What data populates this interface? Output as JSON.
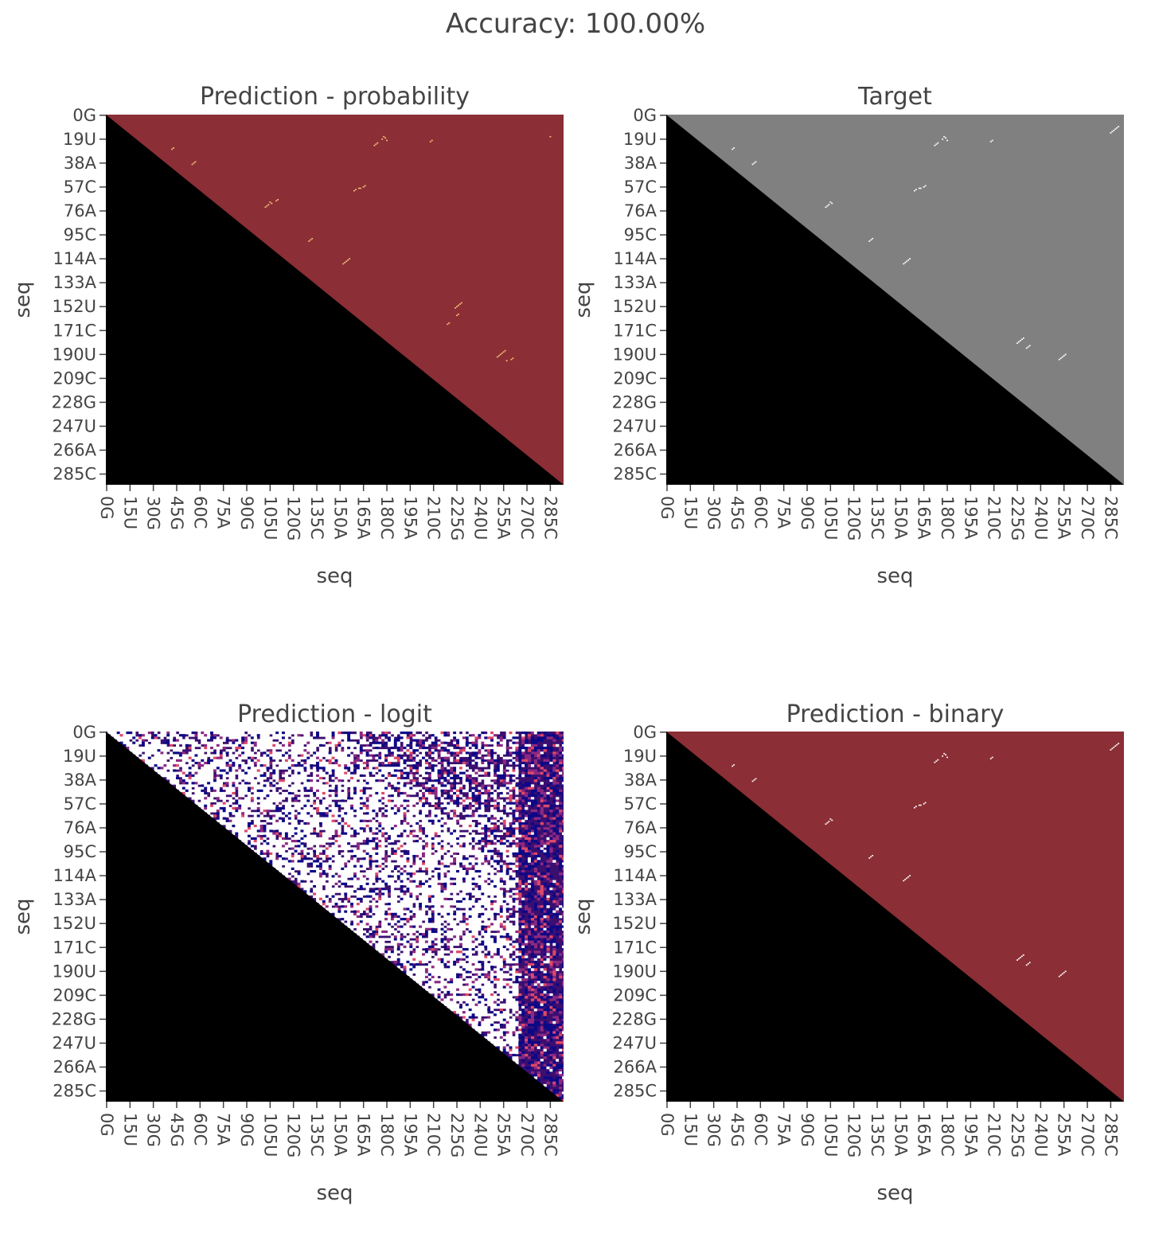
{
  "figure": {
    "title": "Accuracy: 100.00%"
  },
  "chart_data": [
    {
      "type": "heatmap",
      "title": "Prediction - probability",
      "xlabel": "seq",
      "ylabel": "seq",
      "x_ticks": [
        "0G",
        "15U",
        "30G",
        "45G",
        "60C",
        "75A",
        "90G",
        "105U",
        "120G",
        "135C",
        "150A",
        "165A",
        "180C",
        "195A",
        "210C",
        "225G",
        "240U",
        "255A",
        "270C",
        "285C"
      ],
      "y_ticks": [
        "0G",
        "19U",
        "38A",
        "57C",
        "76A",
        "95C",
        "114A",
        "133A",
        "152U",
        "171C",
        "190U",
        "209C",
        "228G",
        "247U",
        "266A",
        "285C"
      ],
      "seq_length": 294,
      "lower_triangle_color": "#000000",
      "background_color": "#8b2e35",
      "pair_color": "#f4c27a",
      "pairs": [
        [
          17,
          178
        ],
        [
          18,
          179
        ],
        [
          19,
          177
        ],
        [
          20,
          180
        ],
        [
          22,
          174
        ],
        [
          23,
          173
        ],
        [
          24,
          172
        ],
        [
          21,
          208
        ],
        [
          20,
          209
        ],
        [
          17,
          285
        ],
        [
          26,
          43
        ],
        [
          27,
          42
        ],
        [
          37,
          57
        ],
        [
          38,
          56
        ],
        [
          39,
          55
        ],
        [
          56,
          166
        ],
        [
          57,
          165
        ],
        [
          58,
          162
        ],
        [
          58,
          163
        ],
        [
          59,
          160
        ],
        [
          60,
          159
        ],
        [
          69,
          105
        ],
        [
          70,
          106
        ],
        [
          71,
          104
        ],
        [
          72,
          103
        ],
        [
          73,
          102
        ],
        [
          67,
          110
        ],
        [
          68,
          109
        ],
        [
          98,
          132
        ],
        [
          99,
          131
        ],
        [
          100,
          130
        ],
        [
          114,
          156
        ],
        [
          115,
          155
        ],
        [
          116,
          154
        ],
        [
          117,
          153
        ],
        [
          118,
          152
        ],
        [
          149,
          228
        ],
        [
          150,
          227
        ],
        [
          151,
          226
        ],
        [
          152,
          225
        ],
        [
          153,
          224
        ],
        [
          158,
          226
        ],
        [
          159,
          225
        ],
        [
          165,
          220
        ],
        [
          166,
          219
        ],
        [
          187,
          256
        ],
        [
          188,
          255
        ],
        [
          189,
          254
        ],
        [
          190,
          253
        ],
        [
          191,
          252
        ],
        [
          192,
          251
        ],
        [
          193,
          261
        ],
        [
          194,
          260
        ],
        [
          195,
          257
        ]
      ]
    },
    {
      "type": "heatmap",
      "title": "Target",
      "xlabel": "seq",
      "ylabel": "seq",
      "x_ticks": [
        "0G",
        "15U",
        "30G",
        "45G",
        "60C",
        "75A",
        "90G",
        "105U",
        "120G",
        "135C",
        "150A",
        "165A",
        "180C",
        "195A",
        "210C",
        "225G",
        "240U",
        "255A",
        "270C",
        "285C"
      ],
      "y_ticks": [
        "0G",
        "19U",
        "38A",
        "57C",
        "76A",
        "95C",
        "114A",
        "133A",
        "152U",
        "171C",
        "190U",
        "209C",
        "228G",
        "247U",
        "266A",
        "285C"
      ],
      "seq_length": 294,
      "lower_triangle_color": "#000000",
      "background_color": "#808080",
      "pair_color": "#ffffff",
      "pairs": [
        [
          17,
          178
        ],
        [
          18,
          179
        ],
        [
          19,
          177
        ],
        [
          20,
          180
        ],
        [
          22,
          174
        ],
        [
          23,
          173
        ],
        [
          24,
          172
        ],
        [
          21,
          208
        ],
        [
          20,
          209
        ],
        [
          9,
          290
        ],
        [
          10,
          289
        ],
        [
          11,
          288
        ],
        [
          12,
          287
        ],
        [
          13,
          286
        ],
        [
          14,
          285
        ],
        [
          26,
          43
        ],
        [
          27,
          42
        ],
        [
          37,
          57
        ],
        [
          38,
          56
        ],
        [
          39,
          55
        ],
        [
          56,
          166
        ],
        [
          57,
          165
        ],
        [
          58,
          162
        ],
        [
          58,
          163
        ],
        [
          59,
          160
        ],
        [
          60,
          159
        ],
        [
          69,
          105
        ],
        [
          70,
          106
        ],
        [
          71,
          104
        ],
        [
          72,
          103
        ],
        [
          73,
          102
        ],
        [
          98,
          132
        ],
        [
          99,
          131
        ],
        [
          100,
          130
        ],
        [
          114,
          156
        ],
        [
          115,
          155
        ],
        [
          116,
          154
        ],
        [
          117,
          153
        ],
        [
          118,
          152
        ],
        [
          177,
          229
        ],
        [
          178,
          228
        ],
        [
          179,
          227
        ],
        [
          180,
          226
        ],
        [
          181,
          225
        ],
        [
          190,
          256
        ],
        [
          191,
          255
        ],
        [
          192,
          254
        ],
        [
          193,
          253
        ],
        [
          194,
          252
        ],
        [
          183,
          233
        ],
        [
          184,
          232
        ],
        [
          185,
          231
        ]
      ]
    },
    {
      "type": "heatmap",
      "title": "Prediction - logit",
      "xlabel": "seq",
      "ylabel": "seq",
      "x_ticks": [
        "0G",
        "15U",
        "30G",
        "45G",
        "60C",
        "75A",
        "90G",
        "105U",
        "120G",
        "135C",
        "150A",
        "165A",
        "180C",
        "195A",
        "210C",
        "225G",
        "240U",
        "255A",
        "270C",
        "285C"
      ],
      "y_ticks": [
        "0G",
        "19U",
        "38A",
        "57C",
        "76A",
        "95C",
        "114A",
        "133A",
        "152U",
        "171C",
        "190U",
        "209C",
        "228G",
        "247U",
        "266A",
        "285C"
      ],
      "seq_length": 294,
      "lower_triangle_color": "#000000",
      "colorscale": [
        "#0d0887",
        "#3b0f70",
        "#8c2981",
        "#de4968",
        "#fe9f6d",
        "#fcfdbf",
        "#ffffff"
      ]
    },
    {
      "type": "heatmap",
      "title": "Prediction - binary",
      "xlabel": "seq",
      "ylabel": "seq",
      "x_ticks": [
        "0G",
        "15U",
        "30G",
        "45G",
        "60C",
        "75A",
        "90G",
        "105U",
        "120G",
        "135C",
        "150A",
        "165A",
        "180C",
        "195A",
        "210C",
        "225G",
        "240U",
        "255A",
        "270C",
        "285C"
      ],
      "y_ticks": [
        "0G",
        "19U",
        "38A",
        "57C",
        "76A",
        "95C",
        "114A",
        "133A",
        "152U",
        "171C",
        "190U",
        "209C",
        "228G",
        "247U",
        "266A",
        "285C"
      ],
      "seq_length": 294,
      "lower_triangle_color": "#000000",
      "background_color": "#8b2e35",
      "pair_color": "#ffffff",
      "pairs": [
        [
          17,
          178
        ],
        [
          18,
          179
        ],
        [
          19,
          177
        ],
        [
          20,
          180
        ],
        [
          22,
          174
        ],
        [
          23,
          173
        ],
        [
          24,
          172
        ],
        [
          21,
          208
        ],
        [
          20,
          209
        ],
        [
          9,
          290
        ],
        [
          10,
          289
        ],
        [
          11,
          288
        ],
        [
          12,
          287
        ],
        [
          13,
          286
        ],
        [
          14,
          285
        ],
        [
          26,
          43
        ],
        [
          27,
          42
        ],
        [
          37,
          57
        ],
        [
          38,
          56
        ],
        [
          39,
          55
        ],
        [
          56,
          166
        ],
        [
          57,
          165
        ],
        [
          58,
          162
        ],
        [
          58,
          163
        ],
        [
          59,
          160
        ],
        [
          60,
          159
        ],
        [
          69,
          105
        ],
        [
          70,
          106
        ],
        [
          71,
          104
        ],
        [
          72,
          103
        ],
        [
          73,
          102
        ],
        [
          98,
          132
        ],
        [
          99,
          131
        ],
        [
          100,
          130
        ],
        [
          114,
          156
        ],
        [
          115,
          155
        ],
        [
          116,
          154
        ],
        [
          117,
          153
        ],
        [
          118,
          152
        ],
        [
          177,
          229
        ],
        [
          178,
          228
        ],
        [
          179,
          227
        ],
        [
          180,
          226
        ],
        [
          181,
          225
        ],
        [
          190,
          256
        ],
        [
          191,
          255
        ],
        [
          192,
          254
        ],
        [
          193,
          253
        ],
        [
          194,
          252
        ],
        [
          183,
          233
        ],
        [
          184,
          232
        ],
        [
          185,
          231
        ]
      ]
    }
  ]
}
